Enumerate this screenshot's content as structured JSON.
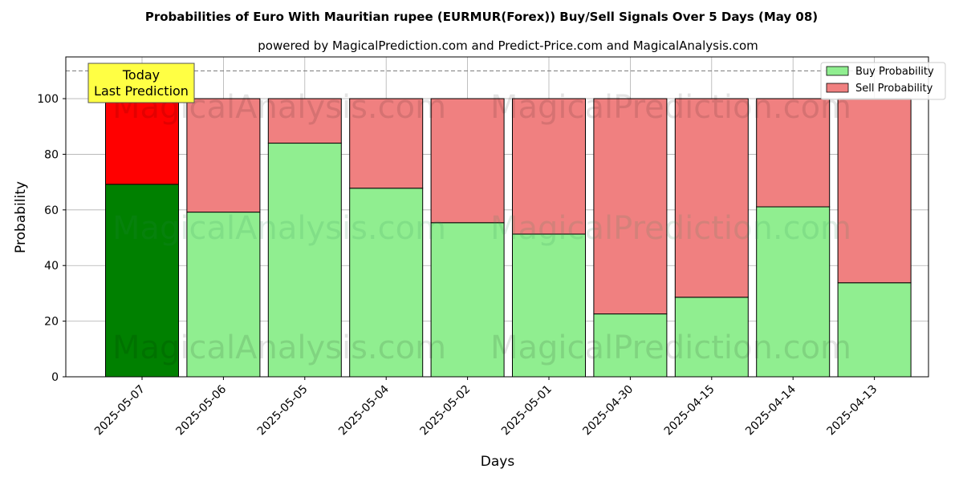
{
  "chart_data": {
    "type": "bar",
    "stacked": true,
    "title": "Probabilities of Euro With Mauritian rupee (EURMUR(Forex)) Buy/Sell Signals Over 5 Days (May 08)",
    "subtitle": "powered by MagicalPrediction.com and Predict-Price.com and MagicalAnalysis.com",
    "xlabel": "Days",
    "ylabel": "Probability",
    "ylim": [
      0,
      115
    ],
    "yticks": [
      0,
      20,
      40,
      60,
      80,
      100
    ],
    "grid": true,
    "legend_position": "top-right",
    "reference_line": 110,
    "categories": [
      "2025-05-07",
      "2025-05-06",
      "2025-05-05",
      "2025-05-04",
      "2025-05-02",
      "2025-05-01",
      "2025-04-30",
      "2025-04-15",
      "2025-04-14",
      "2025-04-13"
    ],
    "series": [
      {
        "name": "Buy Probability",
        "color": "#90ee90",
        "highlight_color": "#008000",
        "values": [
          69.2,
          59.2,
          84.0,
          67.8,
          55.4,
          51.3,
          22.6,
          28.6,
          61.1,
          33.8
        ]
      },
      {
        "name": "Sell Probability",
        "color": "#f08080",
        "highlight_color": "#ff0000",
        "values": [
          30.8,
          40.8,
          16.0,
          32.2,
          44.6,
          48.7,
          77.4,
          71.4,
          38.9,
          66.2
        ]
      }
    ],
    "annotation": {
      "lines": [
        "Today",
        "Last Prediction"
      ],
      "category_index": 0,
      "background": "#ffff44"
    },
    "watermarks": [
      "MagicalAnalysis.com",
      "MagicalPrediction.com"
    ]
  }
}
